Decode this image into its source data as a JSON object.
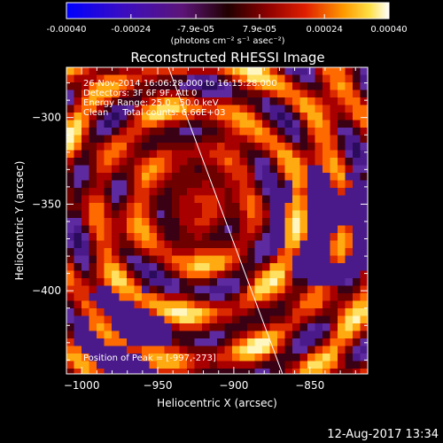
{
  "colorbar": {
    "ticks": [
      "-0.00040",
      "-0.00024",
      "-7.9e-05",
      "7.9e-05",
      "0.00024",
      "0.00040"
    ],
    "tick_values": [
      -0.0004,
      -0.00024,
      -7.9e-05,
      7.9e-05,
      0.00024,
      0.0004
    ],
    "range": [
      -0.0004,
      0.0004
    ],
    "unit_label": "(photons cm⁻² s⁻¹ asec⁻²)"
  },
  "chart_data": {
    "type": "heatmap",
    "title": "Reconstructed RHESSI Image",
    "xlabel": "Heliocentric X (arcsec)",
    "ylabel": "Heliocentric Y (arcsec)",
    "xlim": [
      -1010,
      -812
    ],
    "ylim": [
      -448,
      -271
    ],
    "x_ticks": [
      -1000,
      -950,
      -900,
      -850
    ],
    "x_tick_labels": [
      "−1000",
      "−950",
      "−900",
      "−850"
    ],
    "y_ticks": [
      -300,
      -350,
      -400
    ],
    "y_tick_labels": [
      "−300",
      "−350",
      "−400"
    ],
    "annotations": {
      "time": "26-Nov-2014 16:06:28.000 to 16:15:28.000",
      "detectors": "Detectors: 3F 6F 9F, Att 0",
      "energy": "Energy Range: 25.0 - 50.0 keV",
      "method": "Clean     Total counts: 6.66E+03",
      "peak": "Position of Peak = [-997,-273]"
    },
    "peak_position": [
      -997,
      -273
    ],
    "limb_line": {
      "x": [
        -943,
        -868
      ],
      "y": [
        -271,
        -448
      ]
    }
  },
  "footer": {
    "timestamp": "12-Aug-2017 13:34"
  }
}
